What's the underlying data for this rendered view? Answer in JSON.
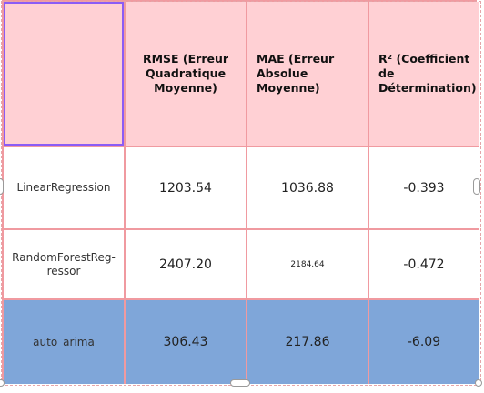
{
  "table": {
    "headers": [
      "",
      "RMSE (Erreur Quadratique Moyenne)",
      "MAE (Erreur Absolue Moyenne)",
      "R² (Coefficient de Détermination)"
    ],
    "rows": [
      {
        "label": "LinearRegression",
        "rmse": "1203.54",
        "mae": "1036.88",
        "r2": "-0.393"
      },
      {
        "label": "RandomForestReg-ressor",
        "rmse": "2407.20",
        "mae": "2184.64",
        "r2": "-0.472"
      },
      {
        "label": "auto_arima",
        "rmse": "306.43",
        "mae": "217.86",
        "r2": "-6.09"
      }
    ]
  },
  "colors": {
    "header_bg": "#ffd0d4",
    "border": "#f09aa0",
    "highlight_row": "#7fa6d9",
    "selected_cell_outline": "#8b5cf6"
  }
}
